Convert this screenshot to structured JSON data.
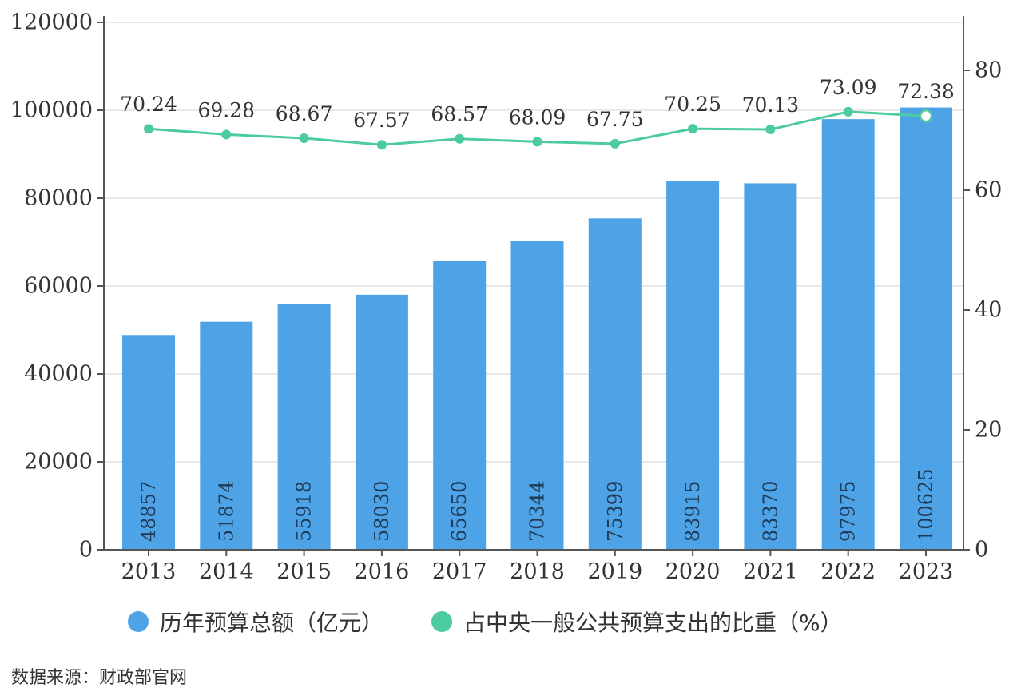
{
  "chart_data": {
    "type": "bar",
    "categories": [
      "2013",
      "2014",
      "2015",
      "2016",
      "2017",
      "2018",
      "2019",
      "2020",
      "2021",
      "2022",
      "2023"
    ],
    "series": [
      {
        "name": "历年预算总额（亿元）",
        "type": "bar",
        "axis": "left",
        "values": [
          48857,
          51874,
          55918,
          58030,
          65650,
          70344,
          75399,
          83915,
          83370,
          97975,
          100625
        ],
        "labels": [
          "48857",
          "51874",
          "55918",
          "58030",
          "65650",
          "70344",
          "75399",
          "83915",
          "83370",
          "97975",
          "100625"
        ],
        "color": "#4ea3e6"
      },
      {
        "name": "占中央一般公共预算支出的比重（%）",
        "type": "line",
        "axis": "right",
        "values": [
          70.24,
          69.28,
          68.67,
          67.57,
          68.57,
          68.09,
          67.75,
          70.25,
          70.13,
          73.09,
          72.38
        ],
        "labels": [
          "70.24",
          "69.28",
          "68.67",
          "67.57",
          "68.57",
          "68.09",
          "67.75",
          "70.25",
          "70.13",
          "73.09",
          "72.38"
        ],
        "color": "#4ccaa0"
      }
    ],
    "y_left": {
      "ylim": [
        0,
        120000
      ],
      "ticks": [
        "0",
        "20000",
        "40000",
        "60000",
        "80000",
        "100000",
        "120000"
      ]
    },
    "y_right": {
      "ylim": [
        0,
        88
      ],
      "ticks": [
        "0",
        "20",
        "40",
        "60",
        "80"
      ]
    },
    "grid": true,
    "legend": "bottom"
  },
  "source": "数据来源：财政部官网"
}
